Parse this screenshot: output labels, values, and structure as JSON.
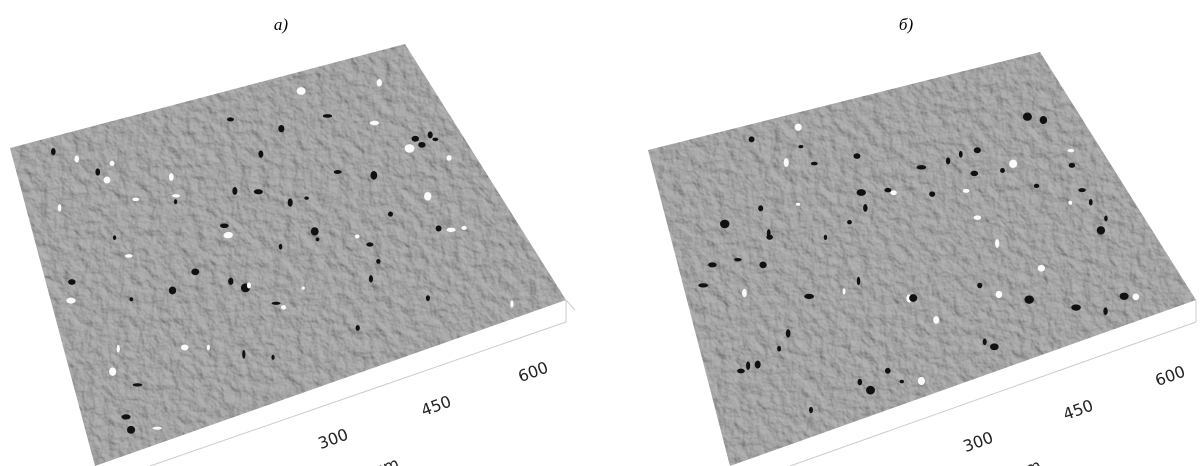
{
  "panels": [
    {
      "label": "а)",
      "axis_ticks": [
        300,
        450,
        600
      ],
      "axis_unit": "µm"
    },
    {
      "label": "б)",
      "axis_ticks": [
        300,
        450,
        600
      ],
      "axis_unit": "µm"
    }
  ]
}
